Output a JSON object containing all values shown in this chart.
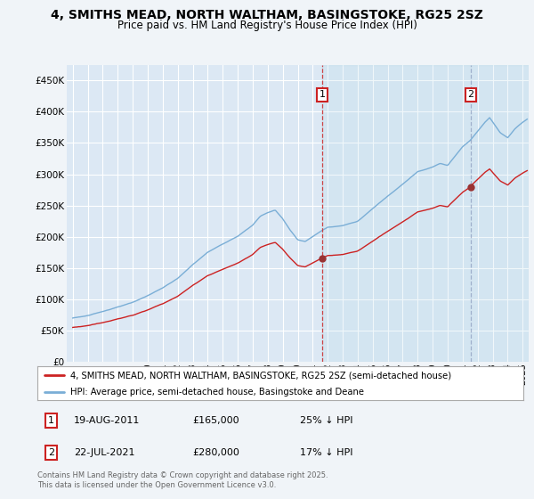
{
  "title_line1": "4, SMITHS MEAD, NORTH WALTHAM, BASINGSTOKE, RG25 2SZ",
  "title_line2": "Price paid vs. HM Land Registry's House Price Index (HPI)",
  "legend_label_red": "4, SMITHS MEAD, NORTH WALTHAM, BASINGSTOKE, RG25 2SZ (semi-detached house)",
  "legend_label_blue": "HPI: Average price, semi-detached house, Basingstoke and Deane",
  "footnote": "Contains HM Land Registry data © Crown copyright and database right 2025.\nThis data is licensed under the Open Government Licence v3.0.",
  "annotation1_date": "19-AUG-2011",
  "annotation1_price": "£165,000",
  "annotation1_hpi": "25% ↓ HPI",
  "annotation2_date": "22-JUL-2021",
  "annotation2_price": "£280,000",
  "annotation2_hpi": "17% ↓ HPI",
  "sale1_year": 2011.63,
  "sale1_price": 165000,
  "sale2_year": 2021.55,
  "sale2_price": 280000,
  "ylim_max": 475000,
  "xlim_start": 1994.6,
  "xlim_end": 2025.4,
  "bg_color": "#f0f4f8",
  "plot_bg_color": "#dce8f4",
  "red_color": "#cc2222",
  "blue_color": "#7aaed6",
  "grid_color": "#ffffff",
  "vline1_color": "#cc3333",
  "vline2_color": "#8899bb"
}
